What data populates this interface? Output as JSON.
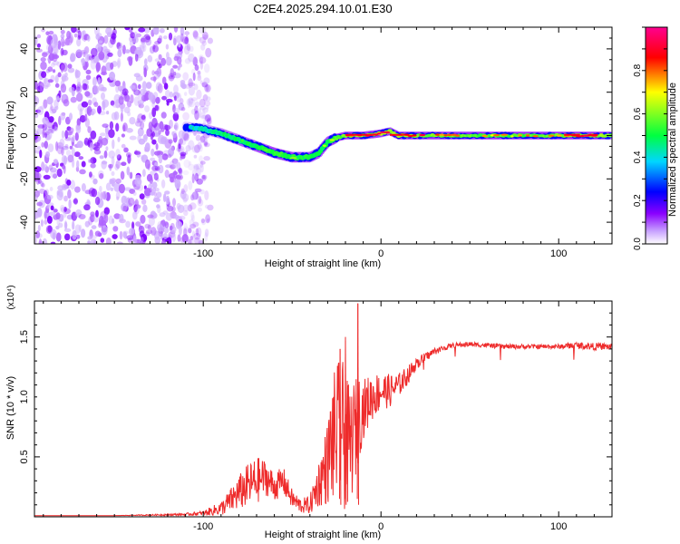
{
  "title": "C2E4.2025.294.10.01.E30",
  "chart_data": [
    {
      "type": "heatmap",
      "title": "C2E4.2025.294.10.01.E30",
      "xlabel": "Height of straight line (km)",
      "ylabel": "Frequency (Hz)",
      "xlim": [
        -195,
        130
      ],
      "ylim": [
        -50,
        50
      ],
      "xticks": [
        -100,
        0,
        100
      ],
      "xtick_labels": [
        "-100",
        "0",
        "100"
      ],
      "yticks": [
        -40,
        -20,
        0,
        20,
        40
      ],
      "ytick_labels": [
        "-40",
        "-20",
        "0",
        "20",
        "40"
      ],
      "colorbar": {
        "label": "Normalized spectral amplitude",
        "range": [
          0,
          1
        ],
        "ticks": [
          0.0,
          0.2,
          0.4,
          0.6,
          0.8
        ],
        "tick_labels": [
          "0.0",
          "0.2",
          "0.4",
          "0.6",
          "0.8"
        ],
        "colors": [
          "#ffffff",
          "#8a00ff",
          "#0000ff",
          "#00d6ff",
          "#00ff00",
          "#ffff00",
          "#ff0000",
          "#ff0090"
        ]
      },
      "ridge": {
        "x": [
          -110,
          -100,
          -90,
          -80,
          -70,
          -60,
          -50,
          -40,
          -35,
          -30,
          -25,
          -20,
          -10,
          0,
          5,
          10,
          20,
          40,
          60,
          80,
          100,
          120,
          130
        ],
        "frequency": [
          4,
          3,
          1,
          -2,
          -5,
          -8,
          -10,
          -10,
          -8,
          -3,
          -1,
          0,
          0,
          1,
          2,
          0,
          0,
          0,
          0,
          0,
          0,
          0,
          0
        ],
        "amplitude": [
          0.2,
          0.3,
          0.45,
          0.5,
          0.55,
          0.6,
          0.6,
          0.55,
          0.6,
          0.6,
          0.7,
          0.85,
          0.9,
          0.95,
          0.9,
          0.9,
          0.9,
          0.8,
          0.75,
          0.75,
          0.8,
          0.95,
          0.85
        ]
      },
      "noise_region_x": [
        -195,
        -100
      ]
    },
    {
      "type": "line",
      "xlabel": "Height of straight line (km)",
      "ylabel": "SNR (10 * v/v)",
      "y_multiplier": "(x10⁴)",
      "xlim": [
        -195,
        130
      ],
      "ylim": [
        0,
        1.8
      ],
      "xticks": [
        -100,
        0,
        100
      ],
      "xtick_labels": [
        "-100",
        "0",
        "100"
      ],
      "yticks": [
        0.5,
        1.0,
        1.5
      ],
      "ytick_labels": [
        "0.5",
        "1.0",
        "1.5"
      ],
      "color": "#ee2b2b",
      "series": [
        {
          "name": "SNR",
          "x": [
            -195,
            -150,
            -110,
            -100,
            -90,
            -85,
            -80,
            -75,
            -70,
            -65,
            -60,
            -55,
            -50,
            -45,
            -40,
            -35,
            -30,
            -28,
            -25,
            -22,
            -20,
            -18,
            -15,
            -12,
            -10,
            -5,
            0,
            5,
            10,
            15,
            20,
            30,
            40,
            50,
            60,
            70,
            80,
            90,
            100,
            110,
            120,
            130
          ],
          "values": [
            0.01,
            0.01,
            0.02,
            0.03,
            0.07,
            0.13,
            0.2,
            0.26,
            0.3,
            0.33,
            0.25,
            0.3,
            0.15,
            0.09,
            0.1,
            0.28,
            0.45,
            0.6,
            0.7,
            0.72,
            0.62,
            0.58,
            0.7,
            0.85,
            0.9,
            1.0,
            1.05,
            1.05,
            1.1,
            1.18,
            1.28,
            1.38,
            1.43,
            1.44,
            1.43,
            1.42,
            1.42,
            1.42,
            1.42,
            1.43,
            1.42,
            1.42
          ],
          "noise_amp": [
            0,
            0,
            0.01,
            0.02,
            0.06,
            0.1,
            0.15,
            0.18,
            0.2,
            0.15,
            0.12,
            0.12,
            0.08,
            0.06,
            0.08,
            0.2,
            0.35,
            0.5,
            0.6,
            0.6,
            0.6,
            0.5,
            0.45,
            0.35,
            0.25,
            0.2,
            0.16,
            0.14,
            0.1,
            0.08,
            0.05,
            0.03,
            0.02,
            0.02,
            0.02,
            0.02,
            0.02,
            0.02,
            0.02,
            0.03,
            0.03,
            0.03
          ]
        }
      ],
      "peaks": [
        {
          "x": -13,
          "value": 1.78
        },
        {
          "x": -20,
          "value": 1.5
        },
        {
          "x": -23,
          "value": 1.4
        }
      ]
    }
  ]
}
